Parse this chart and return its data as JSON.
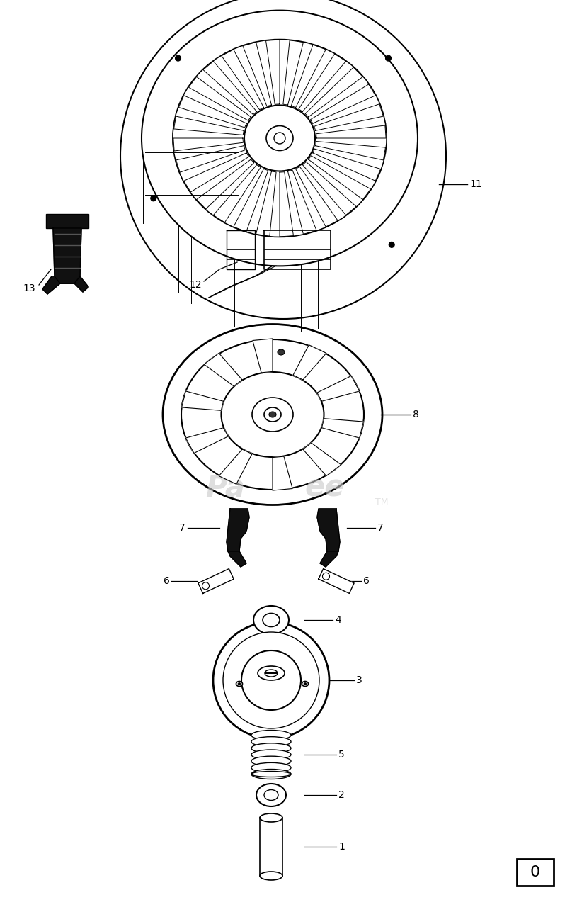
{
  "bg_color": "#ffffff",
  "line_color": "#000000",
  "page_number": "0",
  "watermark_text1": "Pa",
  "watermark_text2": "ee",
  "watermark_color": "#cccccc"
}
